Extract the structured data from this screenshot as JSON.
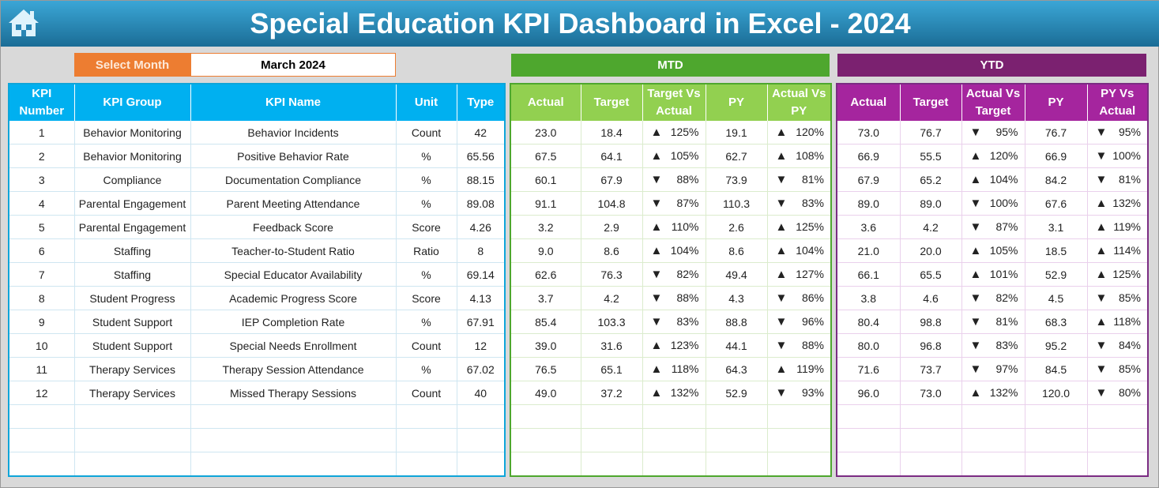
{
  "header": {
    "title": "Special Education KPI Dashboard in Excel - 2024",
    "home_icon": "home-icon"
  },
  "selector": {
    "label": "Select Month",
    "value": "March 2024"
  },
  "bands": {
    "mtd": "MTD",
    "ytd": "YTD",
    "mtd_color": "#4ea72e",
    "ytd_color": "#7b2170"
  },
  "columns": {
    "kpi": [
      "KPI Number",
      "KPI Group",
      "KPI Name",
      "Unit",
      "Type"
    ],
    "mtd": [
      "Actual",
      "Target",
      "Target Vs Actual",
      "PY",
      "Actual Vs PY"
    ],
    "ytd": [
      "Actual",
      "Target",
      "Actual Vs Target",
      "PY",
      "PY Vs Actual"
    ]
  },
  "rows": [
    {
      "kpi": [
        "1",
        "Behavior Monitoring",
        "Behavior Incidents",
        "Count",
        "42"
      ],
      "mtd": [
        "23.0",
        "18.4",
        "up",
        "125%",
        "19.1",
        "up",
        "120%"
      ],
      "ytd": [
        "73.0",
        "76.7",
        "down",
        "95%",
        "76.7",
        "down",
        "95%"
      ]
    },
    {
      "kpi": [
        "2",
        "Behavior Monitoring",
        "Positive Behavior Rate",
        "%",
        "65.56"
      ],
      "mtd": [
        "67.5",
        "64.1",
        "up",
        "105%",
        "62.7",
        "up",
        "108%"
      ],
      "ytd": [
        "66.9",
        "55.5",
        "up",
        "120%",
        "66.9",
        "down",
        "100%"
      ]
    },
    {
      "kpi": [
        "3",
        "Compliance",
        "Documentation Compliance",
        "%",
        "88.15"
      ],
      "mtd": [
        "60.1",
        "67.9",
        "down",
        "88%",
        "73.9",
        "down",
        "81%"
      ],
      "ytd": [
        "67.9",
        "65.2",
        "up",
        "104%",
        "84.2",
        "down",
        "81%"
      ]
    },
    {
      "kpi": [
        "4",
        "Parental Engagement",
        "Parent Meeting Attendance",
        "%",
        "89.08"
      ],
      "mtd": [
        "91.1",
        "104.8",
        "down",
        "87%",
        "110.3",
        "down",
        "83%"
      ],
      "ytd": [
        "89.0",
        "89.0",
        "down",
        "100%",
        "67.6",
        "up",
        "132%"
      ]
    },
    {
      "kpi": [
        "5",
        "Parental Engagement",
        "Feedback Score",
        "Score",
        "4.26"
      ],
      "mtd": [
        "3.2",
        "2.9",
        "up",
        "110%",
        "2.6",
        "up",
        "125%"
      ],
      "ytd": [
        "3.6",
        "4.2",
        "down",
        "87%",
        "3.1",
        "up",
        "119%"
      ]
    },
    {
      "kpi": [
        "6",
        "Staffing",
        "Teacher-to-Student Ratio",
        "Ratio",
        "8"
      ],
      "mtd": [
        "9.0",
        "8.6",
        "up",
        "104%",
        "8.6",
        "up",
        "104%"
      ],
      "ytd": [
        "21.0",
        "20.0",
        "up",
        "105%",
        "18.5",
        "up",
        "114%"
      ]
    },
    {
      "kpi": [
        "7",
        "Staffing",
        "Special Educator Availability",
        "%",
        "69.14"
      ],
      "mtd": [
        "62.6",
        "76.3",
        "down",
        "82%",
        "49.4",
        "up",
        "127%"
      ],
      "ytd": [
        "66.1",
        "65.5",
        "up",
        "101%",
        "52.9",
        "up",
        "125%"
      ]
    },
    {
      "kpi": [
        "8",
        "Student Progress",
        "Academic Progress Score",
        "Score",
        "4.13"
      ],
      "mtd": [
        "3.7",
        "4.2",
        "down",
        "88%",
        "4.3",
        "down",
        "86%"
      ],
      "ytd": [
        "3.8",
        "4.6",
        "down",
        "82%",
        "4.5",
        "down",
        "85%"
      ]
    },
    {
      "kpi": [
        "9",
        "Student Support",
        "IEP Completion Rate",
        "%",
        "67.91"
      ],
      "mtd": [
        "85.4",
        "103.3",
        "down",
        "83%",
        "88.8",
        "down",
        "96%"
      ],
      "ytd": [
        "80.4",
        "98.8",
        "down",
        "81%",
        "68.3",
        "up",
        "118%"
      ]
    },
    {
      "kpi": [
        "10",
        "Student Support",
        "Special Needs Enrollment",
        "Count",
        "12"
      ],
      "mtd": [
        "39.0",
        "31.6",
        "up",
        "123%",
        "44.1",
        "down",
        "88%"
      ],
      "ytd": [
        "80.0",
        "96.8",
        "down",
        "83%",
        "95.2",
        "down",
        "84%"
      ]
    },
    {
      "kpi": [
        "11",
        "Therapy Services",
        "Therapy Session Attendance",
        "%",
        "67.02"
      ],
      "mtd": [
        "76.5",
        "65.1",
        "up",
        "118%",
        "64.3",
        "up",
        "119%"
      ],
      "ytd": [
        "71.6",
        "73.7",
        "down",
        "97%",
        "84.5",
        "down",
        "85%"
      ]
    },
    {
      "kpi": [
        "12",
        "Therapy Services",
        "Missed Therapy Sessions",
        "Count",
        "40"
      ],
      "mtd": [
        "49.0",
        "37.2",
        "up",
        "132%",
        "52.9",
        "down",
        "93%"
      ],
      "ytd": [
        "96.0",
        "73.0",
        "up",
        "132%",
        "120.0",
        "down",
        "80%"
      ]
    }
  ]
}
